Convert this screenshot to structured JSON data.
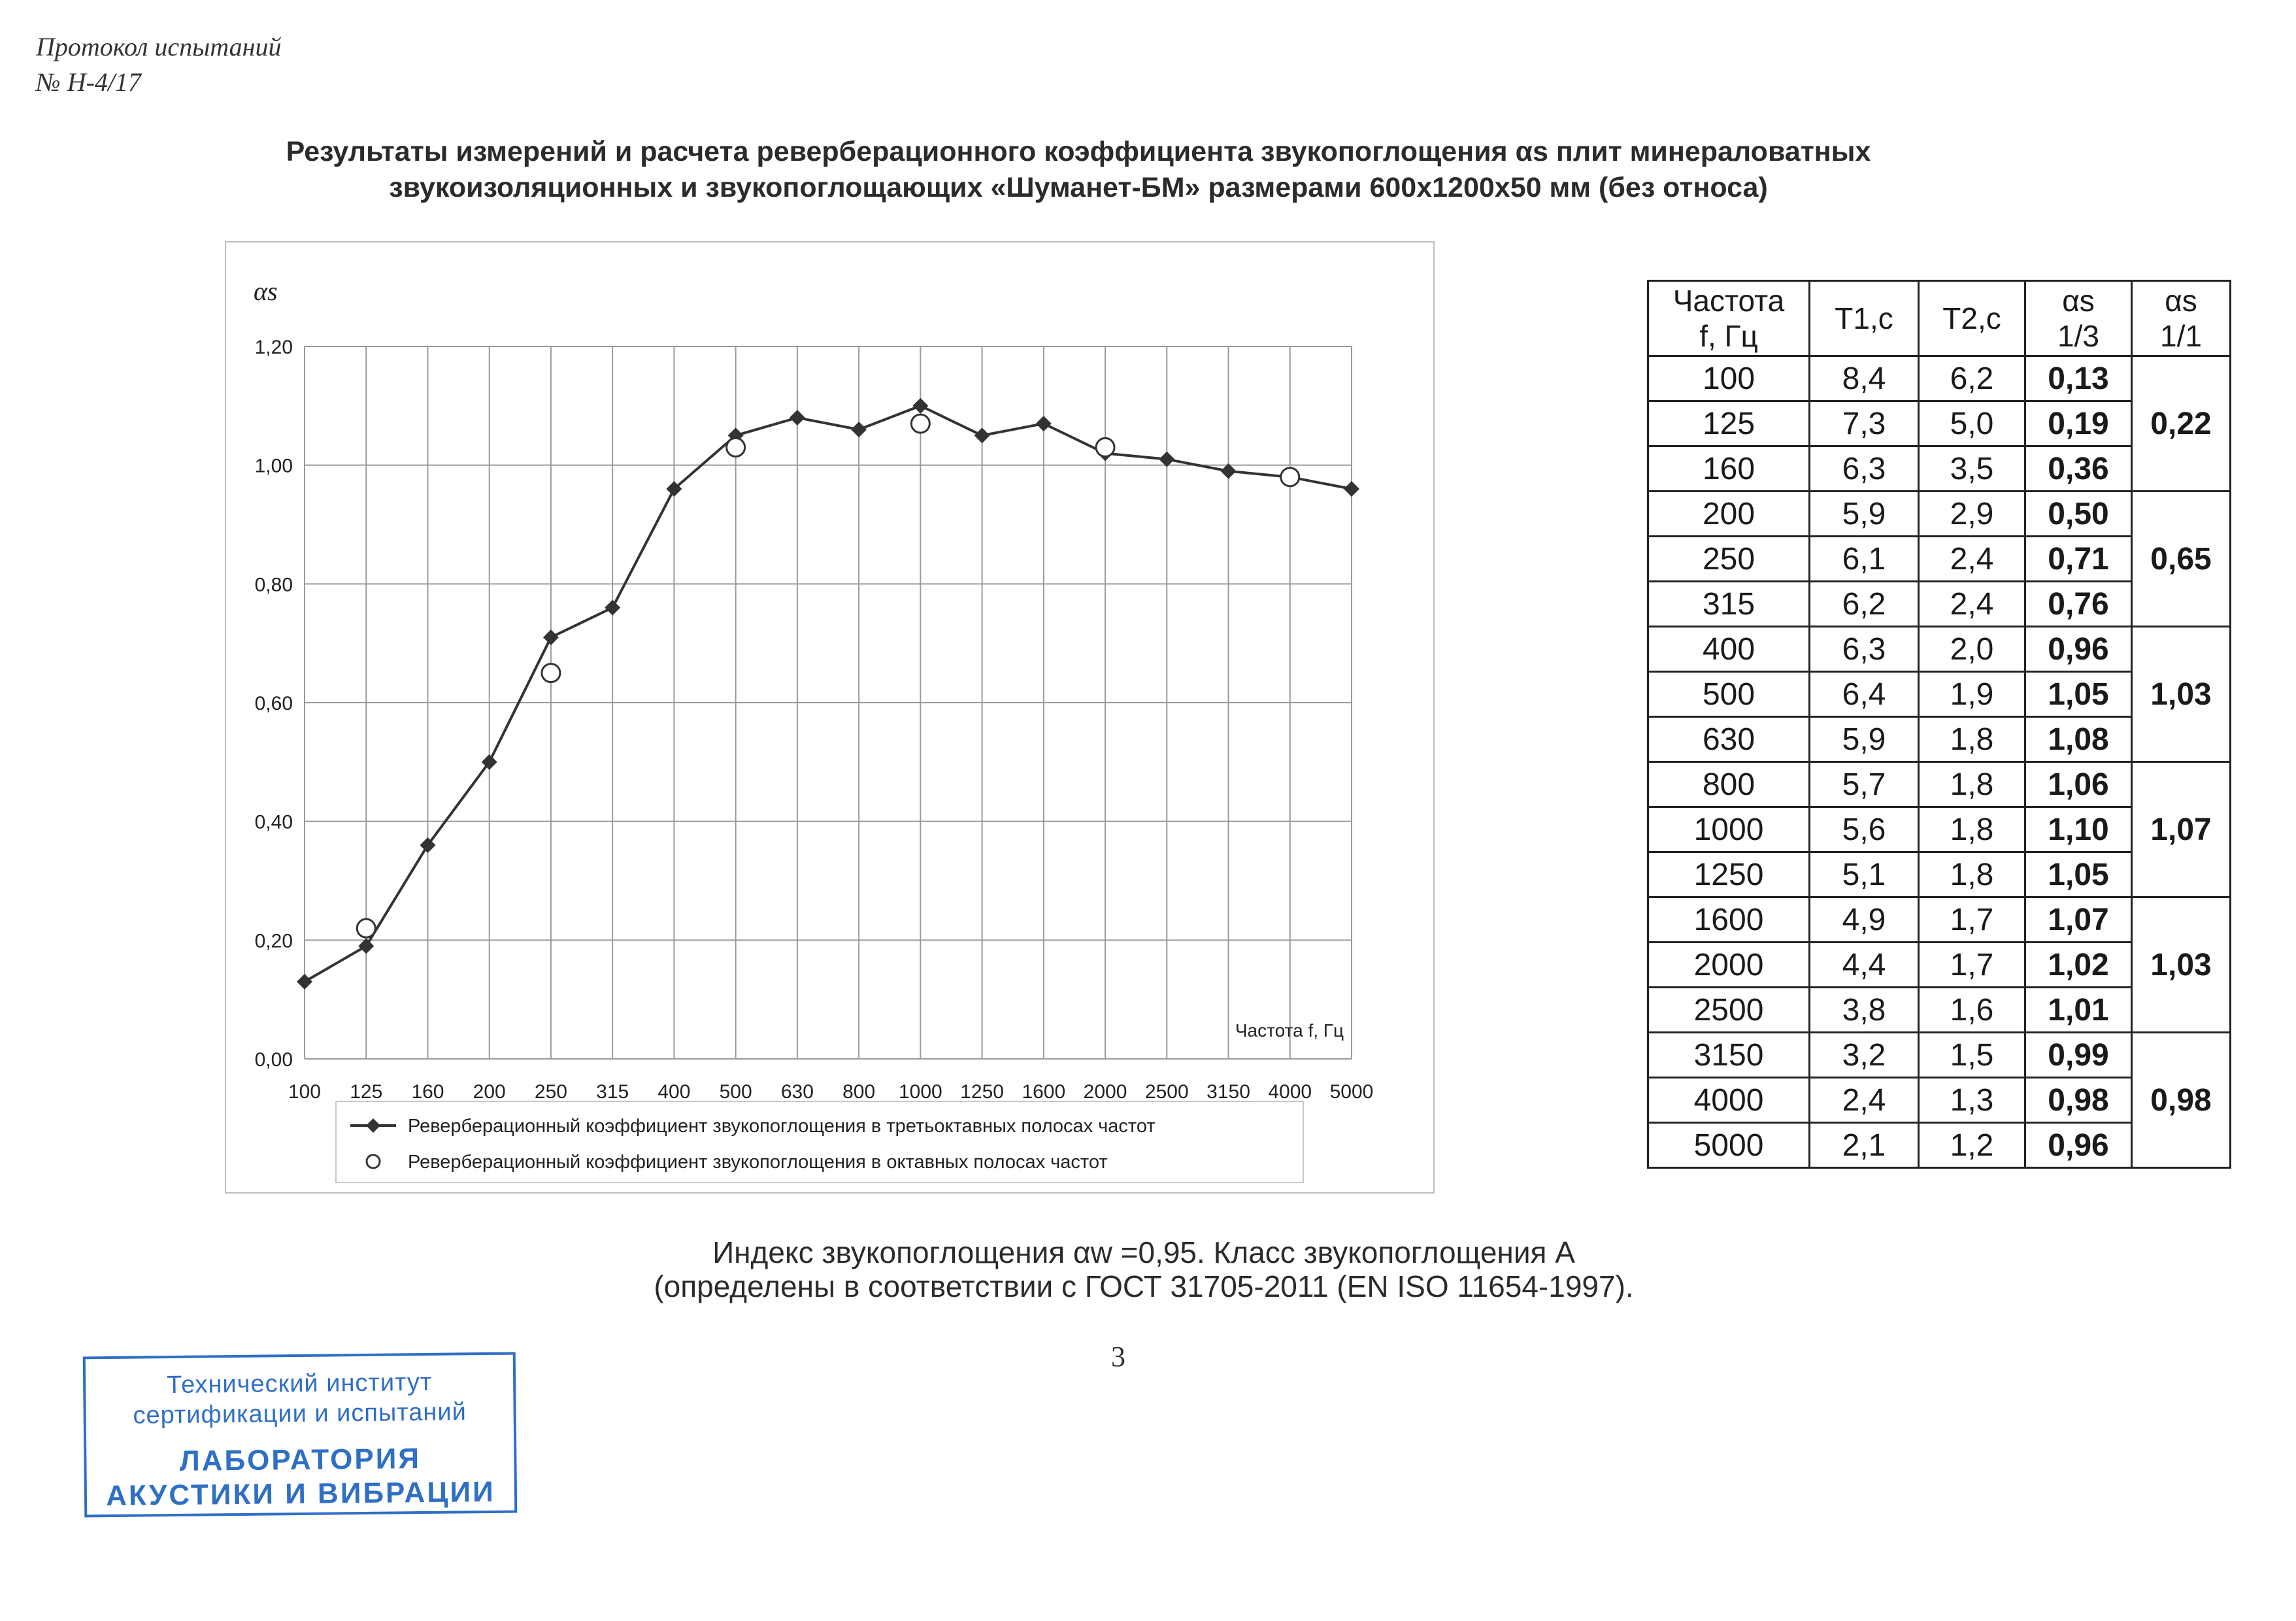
{
  "header": {
    "protocol_line1": "Протокол испытаний",
    "protocol_line2": "№ Н-4/17"
  },
  "title": {
    "line1": "Результаты измерений и расчета реверберационного коэффициента звукопоглощения αs плит минераловатных",
    "line2": "звукоизоляционных и звукопоглощающих «Шуманет-БМ» размерами 600х1200х50 мм (без относа)"
  },
  "chart_data": {
    "type": "line",
    "ylabel": "αs",
    "xlabel": "Частота f, Гц",
    "ylim": [
      0,
      1.2
    ],
    "y_ticks": [
      "0,00",
      "0,20",
      "0,40",
      "0,60",
      "0,80",
      "1,00",
      "1,20"
    ],
    "categories": [
      "100",
      "125",
      "160",
      "200",
      "250",
      "315",
      "400",
      "500",
      "630",
      "800",
      "1000",
      "1250",
      "1600",
      "2000",
      "2500",
      "3150",
      "4000",
      "5000"
    ],
    "grid": true,
    "legend_position": "bottom",
    "series": [
      {
        "name": "Реверберационный коэффициент звукопоглощения в третьоктавных полосах частот",
        "marker": "diamond",
        "color": "#333333",
        "values": [
          0.13,
          0.19,
          0.36,
          0.5,
          0.71,
          0.76,
          0.96,
          1.05,
          1.08,
          1.06,
          1.1,
          1.05,
          1.07,
          1.02,
          1.01,
          0.99,
          0.98,
          0.96
        ]
      },
      {
        "name": "Реверберационный коэффициент звукопоглощения в октавных полосах частот",
        "marker": "circle-open",
        "color": "#333333",
        "points": [
          {
            "category": "125",
            "value": 0.22
          },
          {
            "category": "250",
            "value": 0.65
          },
          {
            "category": "500",
            "value": 1.03
          },
          {
            "category": "1000",
            "value": 1.07
          },
          {
            "category": "2000",
            "value": 1.03
          },
          {
            "category": "4000",
            "value": 0.98
          }
        ]
      }
    ]
  },
  "table": {
    "headers": {
      "freq": [
        "Частота",
        "f, Гц"
      ],
      "t1": "T1,c",
      "t2": "T2,c",
      "a13": [
        "αs",
        "1/3"
      ],
      "a11": [
        "αs",
        "1/1"
      ]
    },
    "rows": [
      [
        "100",
        "8,4",
        "6,2",
        "0,13"
      ],
      [
        "125",
        "7,3",
        "5,0",
        "0,19"
      ],
      [
        "160",
        "6,3",
        "3,5",
        "0,36"
      ],
      [
        "200",
        "5,9",
        "2,9",
        "0,50"
      ],
      [
        "250",
        "6,1",
        "2,4",
        "0,71"
      ],
      [
        "315",
        "6,2",
        "2,4",
        "0,76"
      ],
      [
        "400",
        "6,3",
        "2,0",
        "0,96"
      ],
      [
        "500",
        "6,4",
        "1,9",
        "1,05"
      ],
      [
        "630",
        "5,9",
        "1,8",
        "1,08"
      ],
      [
        "800",
        "5,7",
        "1,8",
        "1,06"
      ],
      [
        "1000",
        "5,6",
        "1,8",
        "1,10"
      ],
      [
        "1250",
        "5,1",
        "1,8",
        "1,05"
      ],
      [
        "1600",
        "4,9",
        "1,7",
        "1,07"
      ],
      [
        "2000",
        "4,4",
        "1,7",
        "1,02"
      ],
      [
        "2500",
        "3,8",
        "1,6",
        "1,01"
      ],
      [
        "3150",
        "3,2",
        "1,5",
        "0,99"
      ],
      [
        "4000",
        "2,4",
        "1,3",
        "0,98"
      ],
      [
        "5000",
        "2,1",
        "1,2",
        "0,96"
      ]
    ],
    "octave_values": [
      "0,22",
      "0,65",
      "1,03",
      "1,07",
      "1,03",
      "0,98"
    ]
  },
  "footer": {
    "index_line": "Индекс звукопоглощения αw =0,95. Класс звукопоглощения  А",
    "reference_line": "(определены в соответствии с ГОСТ 31705-2011 (EN ISO 11654-1997).",
    "page_number": "3"
  },
  "stamp": {
    "line1": "Технический институт",
    "line2": "сертификации и испытаний",
    "line3": "ЛАБОРАТОРИЯ",
    "line4": "АКУСТИКИ И ВИБРАЦИИ"
  }
}
